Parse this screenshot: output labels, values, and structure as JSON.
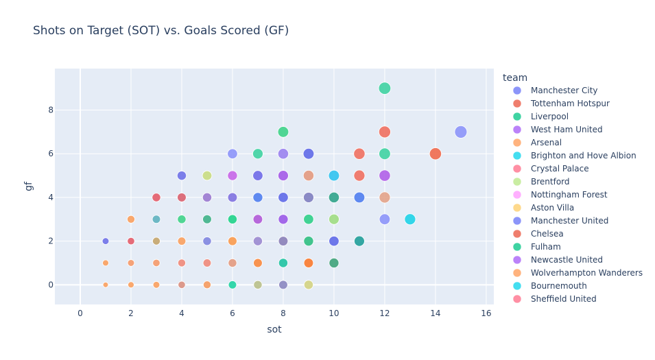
{
  "chart_data": {
    "type": "scatter",
    "title": "Shots on Target (SOT) vs. Goals Scored (GF)",
    "xlabel": "sot",
    "ylabel": "gf",
    "xlim": [
      -1,
      16.3
    ],
    "ylim": [
      -0.9,
      9.9
    ],
    "xticks": [
      0,
      2,
      4,
      6,
      8,
      10,
      12,
      14,
      16
    ],
    "yticks": [
      0,
      2,
      4,
      6,
      8
    ],
    "grid": true,
    "legend": {
      "title": "team",
      "placement": "right",
      "entries": [
        {
          "name": "Manchester City",
          "color": "#8c95f9"
        },
        {
          "name": "Tottenham Hotspur",
          "color": "#ef7e6d"
        },
        {
          "name": "Liverpool",
          "color": "#3fd3a2"
        },
        {
          "name": "West Ham United",
          "color": "#bb82f9"
        },
        {
          "name": "Arsenal",
          "color": "#ffb37e"
        },
        {
          "name": "Brighton and Hove Albion",
          "color": "#44def0"
        },
        {
          "name": "Crystal Palace",
          "color": "#ff8fa4"
        },
        {
          "name": "Brentford",
          "color": "#c9eda2"
        },
        {
          "name": "Nottingham Forest",
          "color": "#ffb0ff"
        },
        {
          "name": "Aston Villa",
          "color": "#fed98c"
        },
        {
          "name": "Manchester United",
          "color": "#8c95f9"
        },
        {
          "name": "Chelsea",
          "color": "#ef7e6d"
        },
        {
          "name": "Fulham",
          "color": "#3fd3a2"
        },
        {
          "name": "Newcastle United",
          "color": "#bb82f9"
        },
        {
          "name": "Wolverhampton Wanderers",
          "color": "#ffb37e"
        },
        {
          "name": "Bournemouth",
          "color": "#44def0"
        },
        {
          "name": "Sheffield United",
          "color": "#ff8fa4"
        }
      ]
    },
    "points": [
      {
        "x": 1,
        "y": 0,
        "color": "#f9a05e"
      },
      {
        "x": 1,
        "y": 1,
        "color": "#f9a05e"
      },
      {
        "x": 1,
        "y": 2,
        "color": "#6f72e8"
      },
      {
        "x": 2,
        "y": 0,
        "color": "#f9a05e"
      },
      {
        "x": 2,
        "y": 1,
        "color": "#f59a6a"
      },
      {
        "x": 2,
        "y": 2,
        "color": "#e35d6a"
      },
      {
        "x": 2,
        "y": 3,
        "color": "#f9a05e"
      },
      {
        "x": 3,
        "y": 0,
        "color": "#f9a05e"
      },
      {
        "x": 3,
        "y": 1,
        "color": "#f59a6a"
      },
      {
        "x": 3,
        "y": 2,
        "color": "#c4a56c"
      },
      {
        "x": 3,
        "y": 3,
        "color": "#5fb3c0"
      },
      {
        "x": 3,
        "y": 4,
        "color": "#e35d6a"
      },
      {
        "x": 4,
        "y": 0,
        "color": "#d98f7f"
      },
      {
        "x": 4,
        "y": 1,
        "color": "#ef8a7a"
      },
      {
        "x": 4,
        "y": 2,
        "color": "#f9a05e"
      },
      {
        "x": 4,
        "y": 3,
        "color": "#3fd38a"
      },
      {
        "x": 4,
        "y": 4,
        "color": "#d9606f"
      },
      {
        "x": 4,
        "y": 5,
        "color": "#6f72e8"
      },
      {
        "x": 5,
        "y": 0,
        "color": "#f59a5e"
      },
      {
        "x": 5,
        "y": 1,
        "color": "#ef8a7a"
      },
      {
        "x": 5,
        "y": 2,
        "color": "#7f86e0"
      },
      {
        "x": 5,
        "y": 3,
        "color": "#3fb38a"
      },
      {
        "x": 5,
        "y": 4,
        "color": "#9a7ad0"
      },
      {
        "x": 5,
        "y": 5,
        "color": "#c9dd82"
      },
      {
        "x": 6,
        "y": 0,
        "color": "#1fd3a2"
      },
      {
        "x": 6,
        "y": 1,
        "color": "#e39a7f"
      },
      {
        "x": 6,
        "y": 2,
        "color": "#f99a4e"
      },
      {
        "x": 6,
        "y": 3,
        "color": "#1fd38a"
      },
      {
        "x": 6,
        "y": 4,
        "color": "#7f72e0"
      },
      {
        "x": 6,
        "y": 5,
        "color": "#c766e8"
      },
      {
        "x": 6,
        "y": 6,
        "color": "#8c95f9"
      },
      {
        "x": 7,
        "y": 0,
        "color": "#b9c08a"
      },
      {
        "x": 7,
        "y": 1,
        "color": "#f98a3e"
      },
      {
        "x": 7,
        "y": 2,
        "color": "#9a8ad0"
      },
      {
        "x": 7,
        "y": 3,
        "color": "#b05ad8"
      },
      {
        "x": 7,
        "y": 4,
        "color": "#4f7ef0"
      },
      {
        "x": 7,
        "y": 5,
        "color": "#6f6ae8"
      },
      {
        "x": 7,
        "y": 6,
        "color": "#3fd3a2"
      },
      {
        "x": 8,
        "y": 0,
        "color": "#8a86c0"
      },
      {
        "x": 8,
        "y": 1,
        "color": "#1fc3a2"
      },
      {
        "x": 8,
        "y": 2,
        "color": "#8a80b8"
      },
      {
        "x": 8,
        "y": 3,
        "color": "#9a5ae8"
      },
      {
        "x": 8,
        "y": 4,
        "color": "#5f6ae8"
      },
      {
        "x": 8,
        "y": 5,
        "color": "#a45ae8"
      },
      {
        "x": 8,
        "y": 6,
        "color": "#9a82f0"
      },
      {
        "x": 8,
        "y": 7,
        "color": "#3fd38a"
      },
      {
        "x": 9,
        "y": 0,
        "color": "#d3d382"
      },
      {
        "x": 9,
        "y": 1,
        "color": "#f97a2e"
      },
      {
        "x": 9,
        "y": 2,
        "color": "#2fbf82"
      },
      {
        "x": 9,
        "y": 3,
        "color": "#2fcf8a"
      },
      {
        "x": 9,
        "y": 4,
        "color": "#7f80c0"
      },
      {
        "x": 9,
        "y": 5,
        "color": "#e39a7f"
      },
      {
        "x": 9,
        "y": 6,
        "color": "#5f6ae8"
      },
      {
        "x": 10,
        "y": 1,
        "color": "#3fa37a"
      },
      {
        "x": 10,
        "y": 2,
        "color": "#5f6ae8"
      },
      {
        "x": 10,
        "y": 3,
        "color": "#9fdd82"
      },
      {
        "x": 10,
        "y": 4,
        "color": "#2fa38a"
      },
      {
        "x": 10,
        "y": 5,
        "color": "#2fc3f0"
      },
      {
        "x": 11,
        "y": 2,
        "color": "#209f9a"
      },
      {
        "x": 11,
        "y": 4,
        "color": "#4f7ef0"
      },
      {
        "x": 11,
        "y": 5,
        "color": "#ef7060"
      },
      {
        "x": 11,
        "y": 6,
        "color": "#ef7060"
      },
      {
        "x": 12,
        "y": 3,
        "color": "#8c95f9"
      },
      {
        "x": 12,
        "y": 4,
        "color": "#e3a38a"
      },
      {
        "x": 12,
        "y": 5,
        "color": "#b060e8"
      },
      {
        "x": 12,
        "y": 6,
        "color": "#3fd3a2"
      },
      {
        "x": 12,
        "y": 7,
        "color": "#ef7060"
      },
      {
        "x": 12,
        "y": 9,
        "color": "#3fd3a2"
      },
      {
        "x": 13,
        "y": 3,
        "color": "#1fd3e8"
      },
      {
        "x": 14,
        "y": 6,
        "color": "#ef6a4e"
      },
      {
        "x": 15,
        "y": 7,
        "color": "#8c95f9"
      }
    ]
  }
}
